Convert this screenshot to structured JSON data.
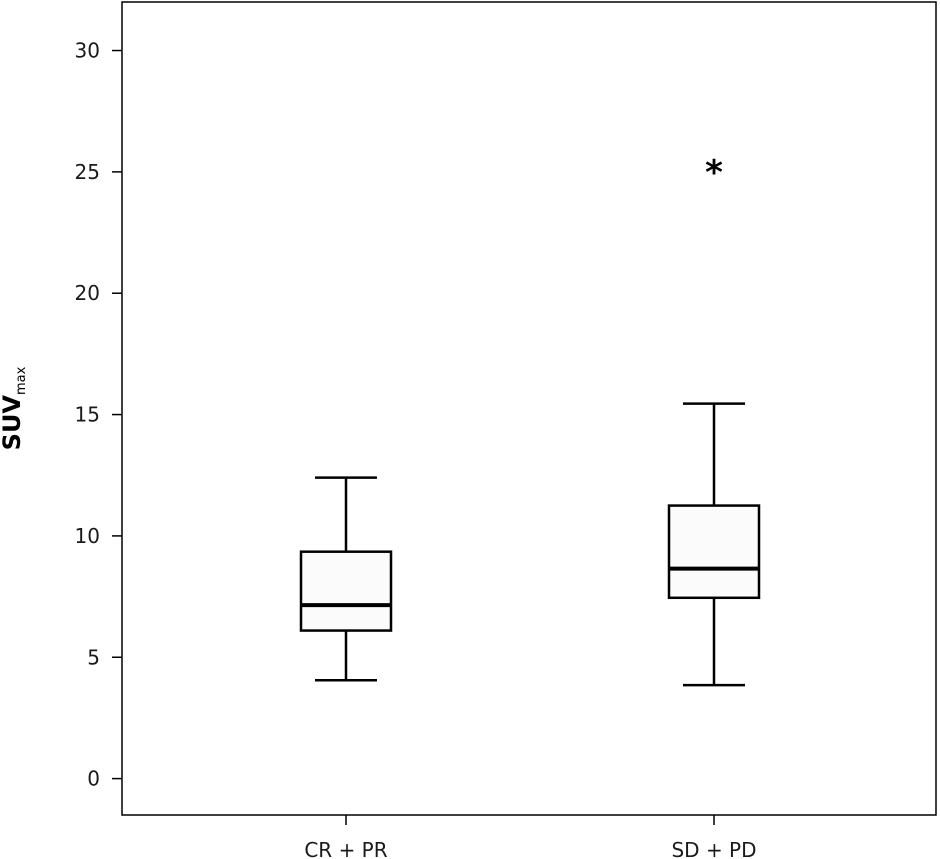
{
  "chart_data": {
    "type": "boxplot",
    "ylabel": "SUV",
    "ylabel_subscript": "max",
    "ylim": [
      -1.5,
      32
    ],
    "yticks": [
      0,
      5,
      10,
      15,
      20,
      25,
      30
    ],
    "categories": [
      "CR + PR",
      "SD + PD"
    ],
    "boxes": [
      {
        "category": "CR + PR",
        "whisker_low": 4.05,
        "q1": 6.1,
        "median": 7.15,
        "q3": 9.35,
        "whisker_high": 12.4,
        "outliers": []
      },
      {
        "category": "SD + PD",
        "whisker_low": 3.85,
        "q1": 7.45,
        "median": 8.65,
        "q3": 11.25,
        "whisker_high": 15.45,
        "outliers": [
          {
            "value": 25.4,
            "marker": "*"
          }
        ]
      }
    ],
    "box_fill": "#fbfbfb",
    "line_color": "#000000",
    "grid": false
  }
}
